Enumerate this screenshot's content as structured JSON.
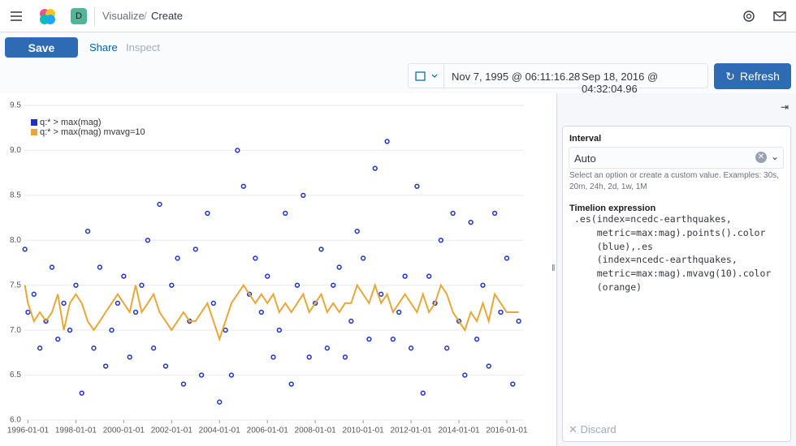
{
  "header": {
    "avatar": "D",
    "breadcrumbs": [
      "Visualize",
      "Create"
    ]
  },
  "toolbar": {
    "save": "Save",
    "share": "Share",
    "inspect": "Inspect"
  },
  "time": {
    "start": "Nov 7, 1995 @ 06:11:16.28",
    "end": "Sep 18, 2016 @ 04:32:04.96",
    "refresh": "Refresh"
  },
  "editor": {
    "interval_label": "Interval",
    "interval_value": "Auto",
    "interval_help": "Select an option or create a custom value. Examples: 30s, 20m, 24h, 2d, 1w, 1M",
    "expression_label": "Timelion expression",
    "expression_lines": [
      ".es(index=ncedc-earthquakes,",
      "    metric=max:mag).points().color",
      "    (blue),.es",
      "    (index=ncedc-earthquakes,",
      "    metric=max:mag).mvavg(10).color",
      "    (orange)"
    ],
    "discard": "Discard"
  },
  "chart_data": {
    "type": "line",
    "x": [
      "1995-11-15",
      "1996-01-01",
      "1996-04-01",
      "1996-07-01",
      "1996-10-01",
      "1997-01-01",
      "1997-04-01",
      "1997-07-01",
      "1997-10-01",
      "1998-01-01",
      "1998-04-01",
      "1998-07-01",
      "1998-10-01",
      "1999-01-01",
      "1999-04-01",
      "1999-07-01",
      "1999-10-01",
      "2000-01-01",
      "2000-04-01",
      "2000-07-01",
      "2000-10-01",
      "2001-01-01",
      "2001-04-01",
      "2001-07-01",
      "2001-10-01",
      "2002-01-01",
      "2002-04-01",
      "2002-07-01",
      "2002-10-01",
      "2003-01-01",
      "2003-04-01",
      "2003-07-01",
      "2003-10-01",
      "2004-01-01",
      "2004-04-01",
      "2004-07-01",
      "2004-10-01",
      "2005-01-01",
      "2005-04-01",
      "2005-07-01",
      "2005-10-01",
      "2006-01-01",
      "2006-04-01",
      "2006-07-01",
      "2006-10-01",
      "2007-01-01",
      "2007-04-01",
      "2007-07-01",
      "2007-10-01",
      "2008-01-01",
      "2008-04-01",
      "2008-07-01",
      "2008-10-01",
      "2009-01-01",
      "2009-04-01",
      "2009-07-01",
      "2009-10-01",
      "2010-01-01",
      "2010-04-01",
      "2010-07-01",
      "2010-10-01",
      "2011-01-01",
      "2011-04-01",
      "2011-07-01",
      "2011-10-01",
      "2012-01-01",
      "2012-04-01",
      "2012-07-01",
      "2012-10-01",
      "2013-01-01",
      "2013-04-01",
      "2013-07-01",
      "2013-10-01",
      "2014-01-01",
      "2014-04-01",
      "2014-07-01",
      "2014-10-01",
      "2015-01-01",
      "2015-04-01",
      "2015-07-01",
      "2015-10-01",
      "2016-01-01",
      "2016-04-01",
      "2016-07-01"
    ],
    "series": [
      {
        "name": "q:* > max(mag)",
        "color": "#1f32c8",
        "style": "points",
        "values": [
          7.9,
          7.2,
          7.4,
          6.8,
          7.1,
          7.7,
          6.9,
          7.3,
          7.0,
          7.5,
          6.3,
          8.1,
          6.8,
          7.7,
          6.6,
          7.0,
          7.3,
          7.6,
          6.7,
          7.2,
          7.5,
          8.0,
          6.8,
          8.4,
          6.6,
          7.5,
          7.8,
          6.4,
          7.1,
          7.9,
          6.5,
          8.3,
          7.3,
          6.2,
          7.0,
          6.5,
          9.0,
          8.6,
          7.4,
          7.8,
          7.2,
          7.6,
          6.7,
          7.0,
          8.3,
          6.4,
          7.5,
          8.5,
          6.7,
          7.3,
          7.9,
          6.8,
          7.5,
          7.7,
          6.7,
          7.1,
          8.1,
          7.8,
          6.9,
          8.8,
          7.4,
          9.1,
          6.9,
          7.2,
          7.6,
          6.8,
          8.6,
          6.3,
          7.6,
          7.3,
          8.0,
          6.8,
          8.3,
          7.1,
          6.5,
          8.2,
          6.9,
          7.5,
          6.6,
          8.3,
          7.2,
          7.8,
          6.4,
          7.1
        ]
      },
      {
        "name": "q:* > max(mag) mvavg=10",
        "color": "#e8a838",
        "style": "line",
        "values": [
          7.5,
          7.3,
          7.1,
          7.2,
          7.1,
          7.2,
          7.4,
          7.0,
          7.3,
          7.4,
          7.3,
          7.1,
          7.0,
          7.1,
          7.2,
          7.3,
          7.4,
          7.3,
          7.2,
          7.5,
          7.2,
          7.3,
          7.4,
          7.2,
          7.1,
          7.0,
          7.1,
          7.2,
          7.1,
          7.1,
          7.2,
          7.3,
          7.1,
          6.9,
          7.1,
          7.3,
          7.4,
          7.5,
          7.4,
          7.3,
          7.4,
          7.3,
          7.4,
          7.2,
          7.3,
          7.2,
          7.3,
          7.4,
          7.2,
          7.3,
          7.4,
          7.2,
          7.3,
          7.2,
          7.3,
          7.3,
          7.5,
          7.4,
          7.3,
          7.5,
          7.3,
          7.4,
          7.2,
          7.3,
          7.4,
          7.3,
          7.2,
          7.4,
          7.2,
          7.3,
          7.5,
          7.4,
          7.2,
          7.1,
          7.0,
          7.2,
          7.1,
          7.3,
          7.1,
          7.4,
          7.3,
          7.2,
          7.2,
          7.2
        ]
      }
    ],
    "xlim": [
      "1995-11-07",
      "2016-09-18"
    ],
    "xticks": [
      "1996-01-01",
      "1998-01-01",
      "2000-01-01",
      "2002-01-01",
      "2004-01-01",
      "2006-01-01",
      "2008-01-01",
      "2010-01-01",
      "2012-01-01",
      "2014-01-01",
      "2016-01-01"
    ],
    "ylim": [
      6,
      9.5
    ],
    "yticks": [
      {
        "value": 6,
        "label": "6.0"
      },
      6.5,
      {
        "value": 7,
        "label": "7.0"
      },
      7.5,
      {
        "value": 8,
        "label": "8.0"
      },
      8.5,
      {
        "value": 9,
        "label": "9.0"
      },
      9.5
    ],
    "grid": true,
    "legend": "top-left"
  }
}
